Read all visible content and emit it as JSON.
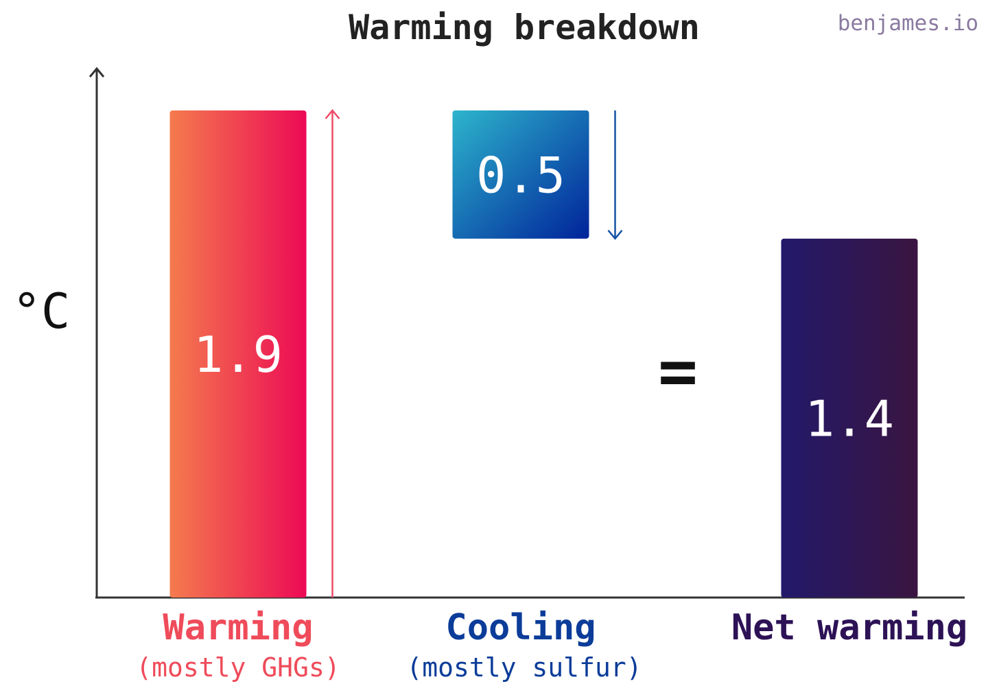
{
  "title": "Warming breakdown",
  "credit": "benjames.io",
  "unit_label": "°C",
  "operator_symbol": "=",
  "colors": {
    "warming_start": "#f47b4e",
    "warming_end": "#ec0a55",
    "warming_text": "#ef4b5a",
    "warming_arrow": "#ef4a66",
    "cooling_start": "#2db5cc",
    "cooling_end": "#00239a",
    "cooling_text": "#0b3c99",
    "cooling_arrow": "#1553a3",
    "net_start": "#22196a",
    "net_end": "#3a1540",
    "net_text": "#2d1256",
    "axis": "#333333"
  },
  "chart_data": {
    "type": "waterfall",
    "title": "Warming breakdown",
    "ylabel": "°C",
    "categories": [
      {
        "name": "Warming",
        "subtitle": "(mostly GHGs)",
        "value": 1.9,
        "label": "1.9",
        "arrow": "up",
        "color_key": "warming"
      },
      {
        "name": "Cooling",
        "subtitle": "(mostly sulfur)",
        "value": -0.5,
        "label": "0.5",
        "arrow": "down",
        "color_key": "cooling"
      },
      {
        "name": "Net warming",
        "subtitle": "",
        "value": 1.4,
        "label": "1.4",
        "arrow": "",
        "color_key": "net"
      }
    ],
    "ylim": [
      0,
      2.1
    ],
    "grid": false,
    "legend": "none"
  }
}
